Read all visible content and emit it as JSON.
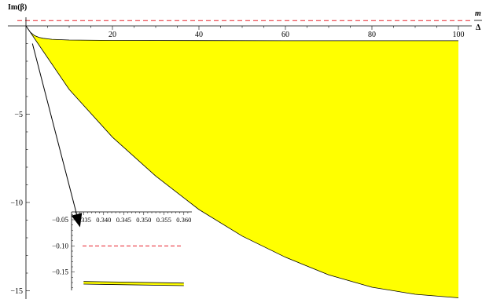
{
  "chart_data": {
    "type": "area",
    "ylabel": "Im(β)",
    "xlabel_num": "m",
    "xlabel_den": "Δ",
    "xlim": [
      0,
      100
    ],
    "ylim": [
      -16,
      0
    ],
    "xticks": [
      20,
      40,
      60,
      80,
      100
    ],
    "yticks": [
      -5,
      -10,
      -15
    ],
    "reference_line": {
      "y": 0.3,
      "style": "dashed",
      "color": "#e8202a"
    },
    "band": {
      "fill": "#ffff00",
      "stroke": "#000000",
      "upper": {
        "x": [
          0,
          1,
          2,
          3,
          4,
          6,
          10,
          20,
          40,
          60,
          80,
          100
        ],
        "y": [
          0,
          -0.35,
          -0.55,
          -0.65,
          -0.7,
          -0.76,
          -0.8,
          -0.82,
          -0.83,
          -0.84,
          -0.84,
          -0.84
        ]
      },
      "lower": {
        "x": [
          0,
          10,
          20,
          30,
          40,
          50,
          60,
          70,
          80,
          90,
          100
        ],
        "y": [
          0,
          -3.6,
          -6.3,
          -8.5,
          -10.4,
          -11.9,
          -13.1,
          -14.1,
          -14.8,
          -15.2,
          -15.4
        ]
      }
    },
    "annotation_arrow": {
      "from": [
        1.5,
        -1.0
      ],
      "to": [
        12.5,
        -11.4
      ]
    },
    "inset": {
      "xlim": [
        0.332,
        0.362
      ],
      "ylim": [
        -0.185,
        -0.035
      ],
      "xticks": [
        0.335,
        0.34,
        0.345,
        0.35,
        0.355,
        0.36
      ],
      "xticklabels": [
        "0.335",
        "0.340",
        "0.345",
        "0.350",
        "0.355",
        "0.360"
      ],
      "yticks": [
        -0.05,
        -0.1,
        -0.15
      ],
      "yticklabels": [
        "−0.05",
        "−0.10",
        "−0.15"
      ],
      "reference_line": {
        "y": -0.1,
        "style": "dashed",
        "color": "#e8202a"
      },
      "band": {
        "x": [
          0.335,
          0.36
        ],
        "upper": [
          -0.168,
          -0.171
        ],
        "lower": [
          -0.173,
          -0.176
        ]
      }
    }
  }
}
